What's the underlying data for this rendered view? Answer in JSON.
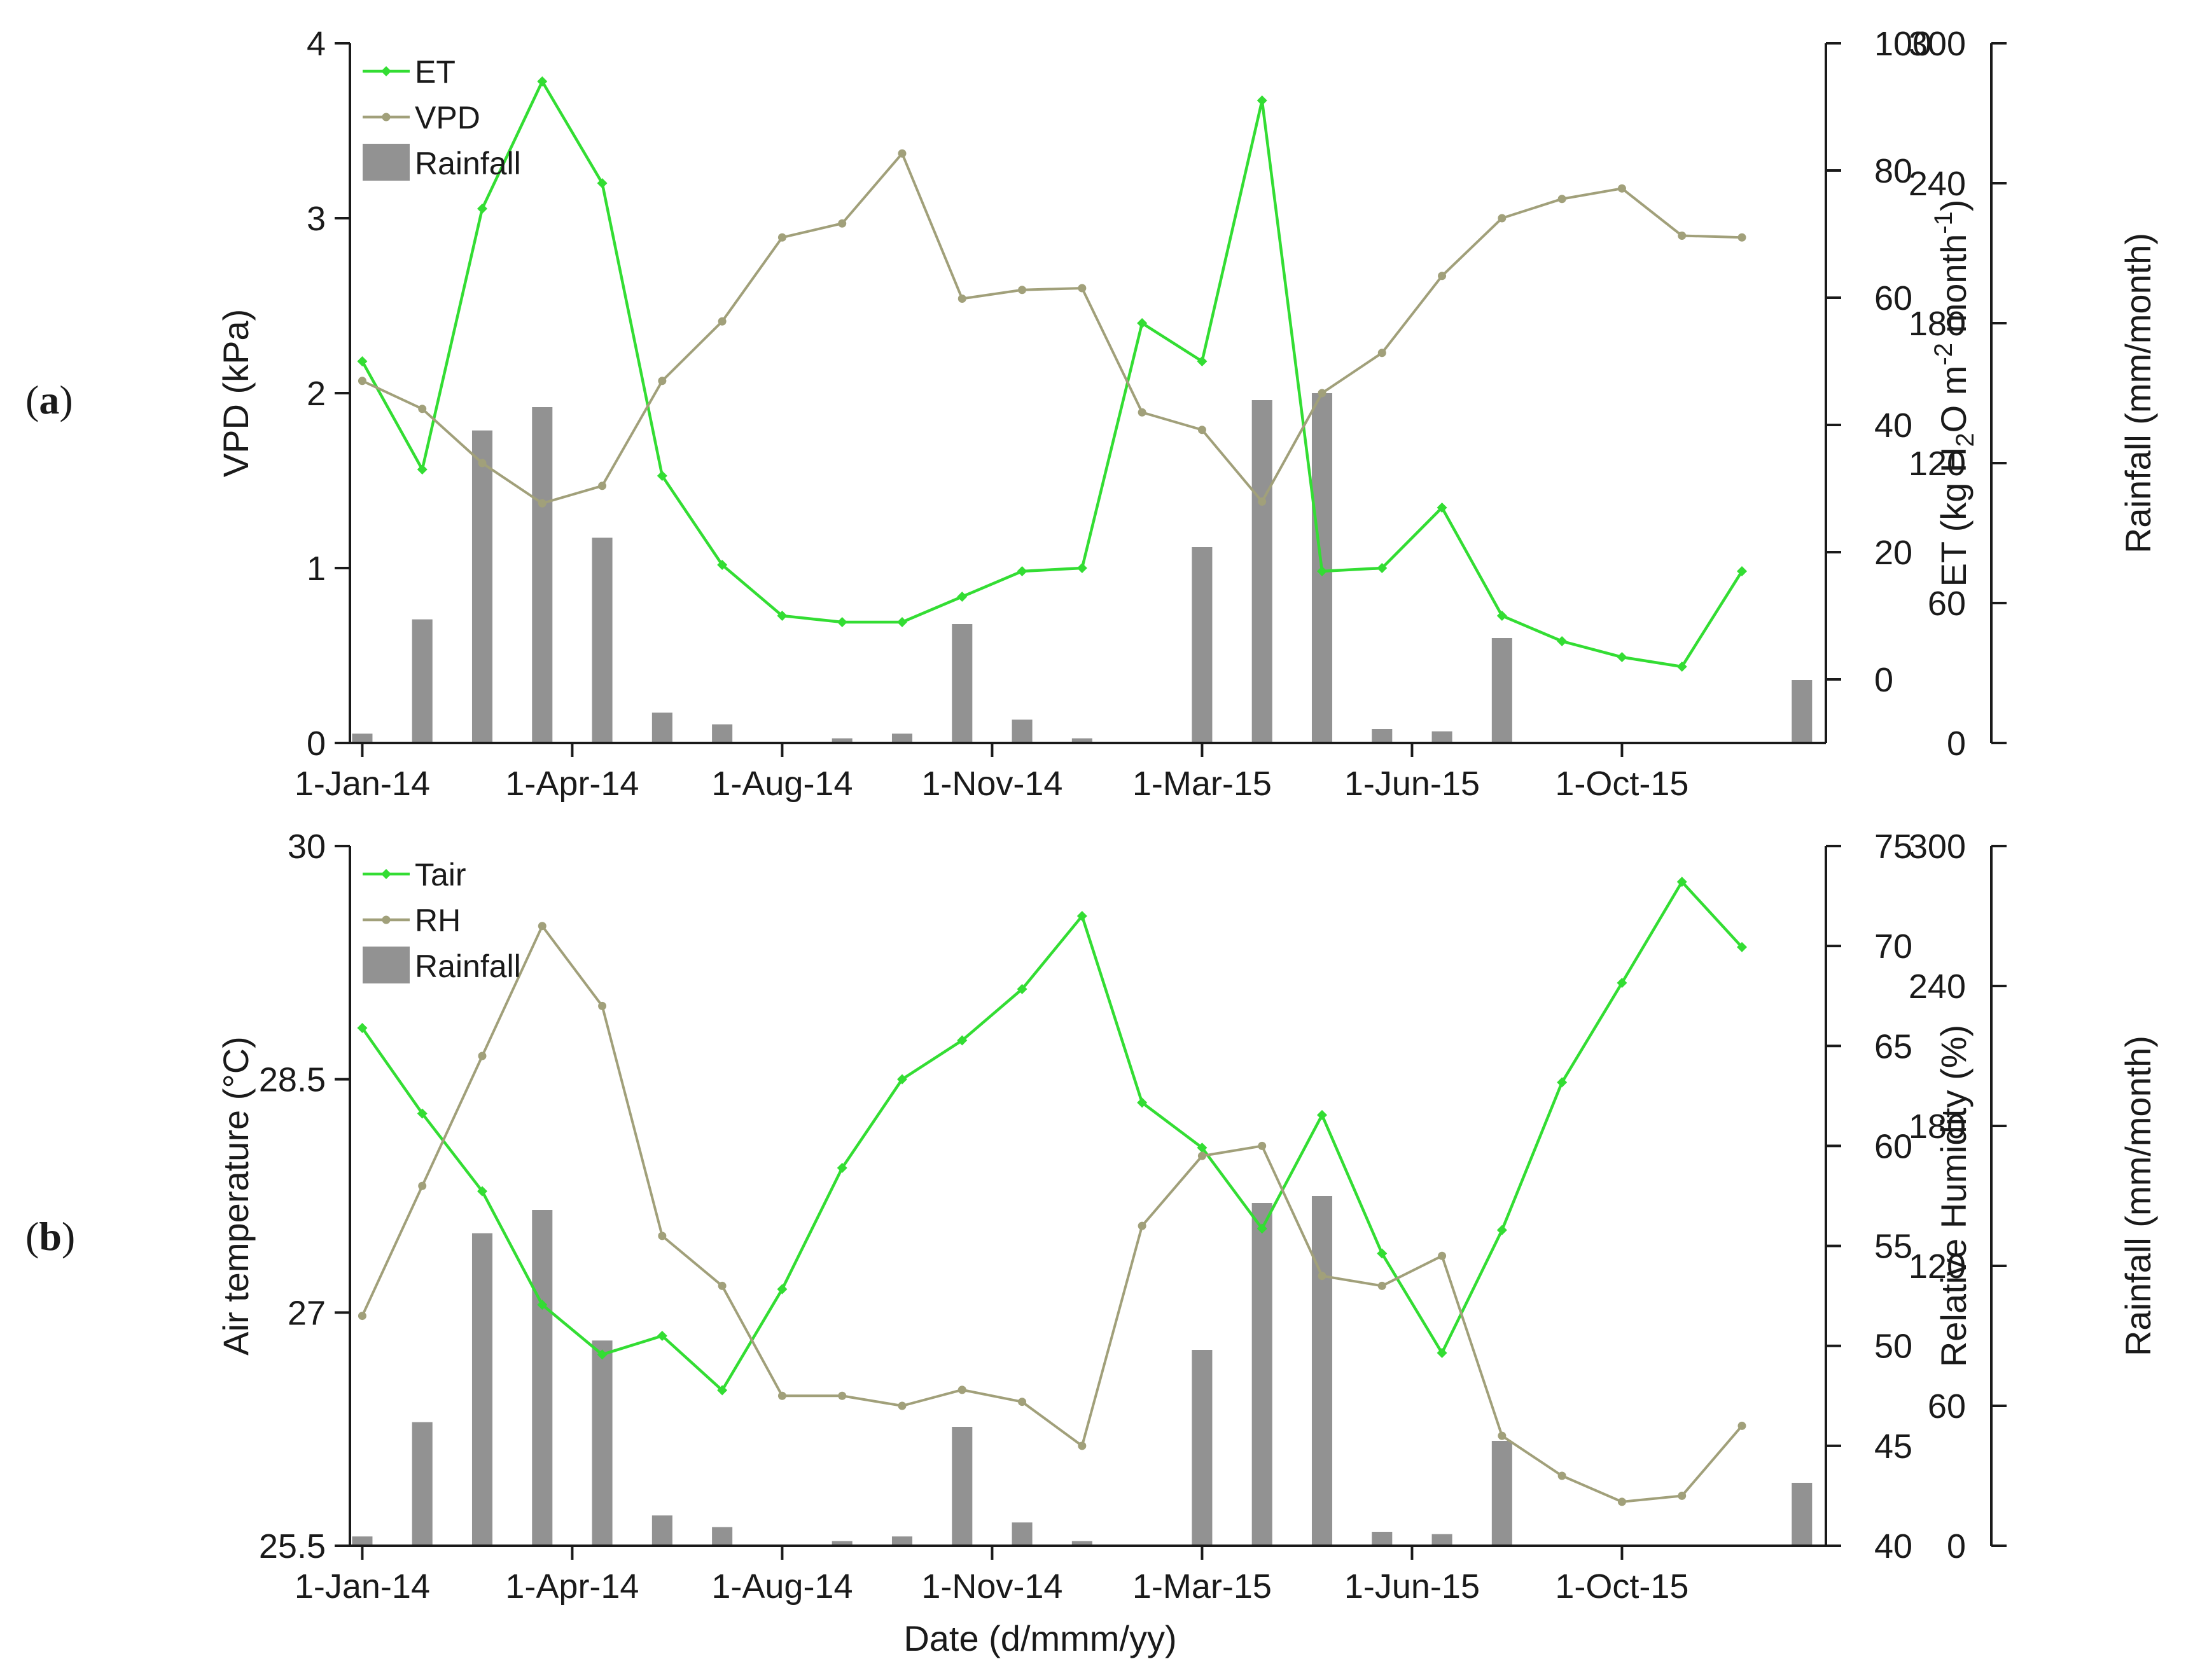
{
  "figure": {
    "xlabel": "Date (d/mmm/yy)",
    "colors": {
      "line_primary": "#33dd33",
      "line_secondary": "#a1a07a",
      "bars": "#929292",
      "axis": "#1a1a1a"
    }
  },
  "chart_data": [
    {
      "panel_label": "a",
      "type": "line+bar",
      "x_dates": [
        "Jan-14",
        "Feb-14",
        "Mar-14",
        "Apr-14",
        "May-14",
        "Jun-14",
        "Jul-14",
        "Aug-14",
        "Sep-14",
        "Oct-14",
        "Nov-14",
        "Dec-14",
        "Jan-15",
        "Feb-15",
        "Mar-15",
        "Apr-15",
        "May-15",
        "Jun-15",
        "Jul-15",
        "Aug-15",
        "Sep-15",
        "Oct-15",
        "Nov-15",
        "Dec-15",
        "Jan-16"
      ],
      "x_tick_labels": [
        "1-Jan-14",
        "1-Apr-14",
        "1-Aug-14",
        "1-Nov-14",
        "1-Mar-15",
        "1-Jun-15",
        "1-Oct-15"
      ],
      "x_tick_indices": [
        0,
        3.5,
        7,
        10.5,
        14,
        17.5,
        21
      ],
      "left_axis": {
        "label": "VPD (kPa)",
        "range": [
          0,
          4
        ],
        "ticks": [
          "0",
          "1",
          "2",
          "3",
          "4"
        ]
      },
      "right_axis_1": {
        "label_main": "ET (kg H",
        "label_sub1": "2",
        "label_mid": "O m",
        "label_sup1": "-2",
        "label_mid2": " month",
        "label_sup2": "-1",
        "label_end": ")",
        "range": [
          -10,
          100
        ],
        "ticks": [
          "0",
          "20",
          "40",
          "60",
          "80",
          "100"
        ]
      },
      "right_axis_2": {
        "label": "Rainfall (mm/month)",
        "range": [
          0,
          300
        ],
        "ticks": [
          "0",
          "60",
          "120",
          "180",
          "240",
          "300"
        ]
      },
      "series": [
        {
          "name": "ET",
          "axis": "right_1",
          "marker": "diamond",
          "values": [
            50,
            33,
            74,
            94,
            78,
            32,
            18,
            10,
            9,
            9,
            13,
            17,
            17.5,
            56,
            50,
            91,
            17,
            17.5,
            27,
            10,
            6,
            3.5,
            2,
            17,
            null
          ]
        },
        {
          "name": "VPD",
          "axis": "left",
          "marker": "circle",
          "values": [
            2.07,
            1.91,
            1.6,
            1.37,
            1.47,
            2.07,
            2.41,
            2.89,
            2.97,
            3.37,
            2.54,
            2.59,
            2.6,
            1.89,
            1.79,
            1.38,
            2.0,
            2.23,
            2.67,
            3.0,
            3.11,
            3.17,
            2.9,
            2.89,
            null
          ]
        }
      ],
      "bars": {
        "name": "Rainfall",
        "axis": "right_2",
        "values": [
          4,
          53,
          134,
          144,
          88,
          13,
          8,
          0,
          2,
          4,
          51,
          10,
          2,
          0,
          84,
          147,
          150,
          6,
          5,
          45,
          0,
          0,
          0,
          0,
          27
        ]
      },
      "legend": [
        {
          "label": "ET",
          "kind": "line"
        },
        {
          "label": "VPD",
          "kind": "line2"
        },
        {
          "label": "Rainfall",
          "kind": "bar"
        }
      ]
    },
    {
      "panel_label": "b",
      "type": "line+bar",
      "x_dates": [
        "Jan-14",
        "Feb-14",
        "Mar-14",
        "Apr-14",
        "May-14",
        "Jun-14",
        "Jul-14",
        "Aug-14",
        "Sep-14",
        "Oct-14",
        "Nov-14",
        "Dec-14",
        "Jan-15",
        "Feb-15",
        "Mar-15",
        "Apr-15",
        "May-15",
        "Jun-15",
        "Jul-15",
        "Aug-15",
        "Sep-15",
        "Oct-15",
        "Nov-15",
        "Dec-15",
        "Jan-16"
      ],
      "x_tick_labels": [
        "1-Jan-14",
        "1-Apr-14",
        "1-Aug-14",
        "1-Nov-14",
        "1-Mar-15",
        "1-Jun-15",
        "1-Oct-15"
      ],
      "x_tick_indices": [
        0,
        3.5,
        7,
        10.5,
        14,
        17.5,
        21
      ],
      "left_axis": {
        "label": "Air temperature (°C)",
        "range": [
          25.5,
          30
        ],
        "ticks": [
          "25.5",
          "27",
          "28.5",
          "30"
        ]
      },
      "right_axis_1": {
        "label": "Relative Humidity (%)",
        "range": [
          40,
          75
        ],
        "ticks": [
          "40",
          "45",
          "50",
          "55",
          "60",
          "65",
          "70",
          "75"
        ]
      },
      "right_axis_2": {
        "label": "Rainfall (mm/month)",
        "range": [
          0,
          300
        ],
        "ticks": [
          "0",
          "60",
          "120",
          "180",
          "240",
          "300"
        ]
      },
      "series": [
        {
          "name": "Tair",
          "axis": "left",
          "marker": "diamond",
          "values": [
            28.83,
            28.28,
            27.78,
            27.05,
            26.73,
            26.85,
            26.5,
            27.15,
            27.93,
            28.5,
            28.75,
            29.08,
            29.55,
            28.35,
            28.06,
            27.54,
            28.27,
            27.38,
            26.74,
            27.53,
            28.48,
            29.12,
            29.77,
            29.35,
            null
          ]
        },
        {
          "name": "RH",
          "axis": "right_1",
          "marker": "circle",
          "values": [
            51.5,
            58,
            64.5,
            71,
            67,
            55.5,
            53,
            47.5,
            47.5,
            47,
            47.8,
            47.2,
            45,
            56,
            59.5,
            60,
            53.5,
            53,
            54.5,
            45.5,
            43.5,
            42.2,
            42.5,
            46,
            null
          ]
        }
      ],
      "bars": {
        "name": "Rainfall",
        "axis": "right_2",
        "values": [
          4,
          53,
          134,
          144,
          88,
          13,
          8,
          0,
          2,
          4,
          51,
          10,
          2,
          0,
          84,
          147,
          150,
          6,
          5,
          45,
          0,
          0,
          0,
          0,
          27
        ]
      },
      "legend": [
        {
          "label": "Tair",
          "kind": "line"
        },
        {
          "label": "RH",
          "kind": "line2"
        },
        {
          "label": "Rainfall",
          "kind": "bar"
        }
      ]
    }
  ]
}
